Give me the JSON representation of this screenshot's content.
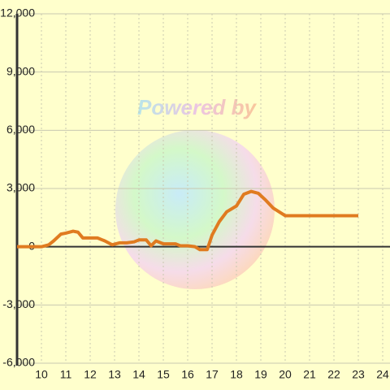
{
  "chart_data": {
    "type": "line",
    "watermark": "Powered by",
    "x": [
      9,
      10,
      10.3,
      10.5,
      10.8,
      11,
      11.3,
      11.5,
      11.7,
      12,
      12.3,
      12.6,
      12.9,
      13.2,
      13.5,
      13.8,
      14,
      14.3,
      14.5,
      14.7,
      15,
      15.5,
      15.7,
      16,
      16.3,
      16.5,
      16.8,
      17,
      17.3,
      17.6,
      18,
      18.3,
      18.6,
      18.9,
      19.2,
      19.5,
      20,
      20.2,
      21,
      22,
      23
    ],
    "series": [
      {
        "color": "#e07b20",
        "values": [
          0,
          0,
          100,
          300,
          650,
          700,
          800,
          750,
          450,
          450,
          450,
          300,
          100,
          200,
          200,
          250,
          350,
          350,
          50,
          300,
          150,
          150,
          50,
          50,
          0,
          -150,
          -150,
          600,
          1300,
          1800,
          2100,
          2700,
          2850,
          2750,
          2400,
          2000,
          1600,
          1600,
          1600,
          1600,
          1600
        ]
      }
    ],
    "xlim": [
      9,
      24.3
    ],
    "xticks": [
      10,
      11,
      12,
      13,
      14,
      15,
      16,
      17,
      18,
      19,
      20,
      21,
      22,
      23,
      24
    ],
    "ylim": [
      -6000,
      12000
    ],
    "yticks": [
      {
        "value": -6000,
        "label": "-6,000"
      },
      {
        "value": -3000,
        "label": "-3,000"
      },
      0,
      {
        "value": 3000,
        "label": "3,000"
      },
      {
        "value": 6000,
        "label": "6,000"
      },
      {
        "value": 9000,
        "label": "9,000"
      },
      {
        "value": 12000,
        "label": "12,000"
      }
    ],
    "grid": true
  }
}
